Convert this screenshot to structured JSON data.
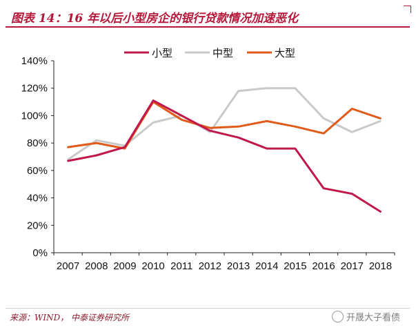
{
  "header": {
    "title": "图表 14：16 年以后小型房企的银行贷款情况加速恶化"
  },
  "footer": {
    "source": "来源：WIND， 中泰证券研究所",
    "watermark": "开晟大子看债"
  },
  "chart_data": {
    "type": "line",
    "title": "",
    "xlabel": "",
    "ylabel": "",
    "x": [
      "2007",
      "2008",
      "2009",
      "2010",
      "2011",
      "2012",
      "2013",
      "2014",
      "2015",
      "2016",
      "2017",
      "2018"
    ],
    "ylim": [
      0,
      140
    ],
    "yticks": [
      "0%",
      "20%",
      "40%",
      "60%",
      "80%",
      "100%",
      "120%",
      "140%"
    ],
    "grid": false,
    "legend_position": "top",
    "series": [
      {
        "name": "小型",
        "color": "#c0184a",
        "values": [
          67,
          71,
          77,
          111,
          100,
          89,
          84,
          76,
          76,
          47,
          43,
          30
        ]
      },
      {
        "name": "中型",
        "color": "#c9c9c9",
        "values": [
          68,
          82,
          78,
          95,
          100,
          88,
          118,
          120,
          120,
          98,
          88,
          96
        ]
      },
      {
        "name": "大型",
        "color": "#e05a1a",
        "values": [
          77,
          80,
          76,
          110,
          97,
          91,
          92,
          96,
          92,
          87,
          105,
          98
        ]
      }
    ]
  }
}
